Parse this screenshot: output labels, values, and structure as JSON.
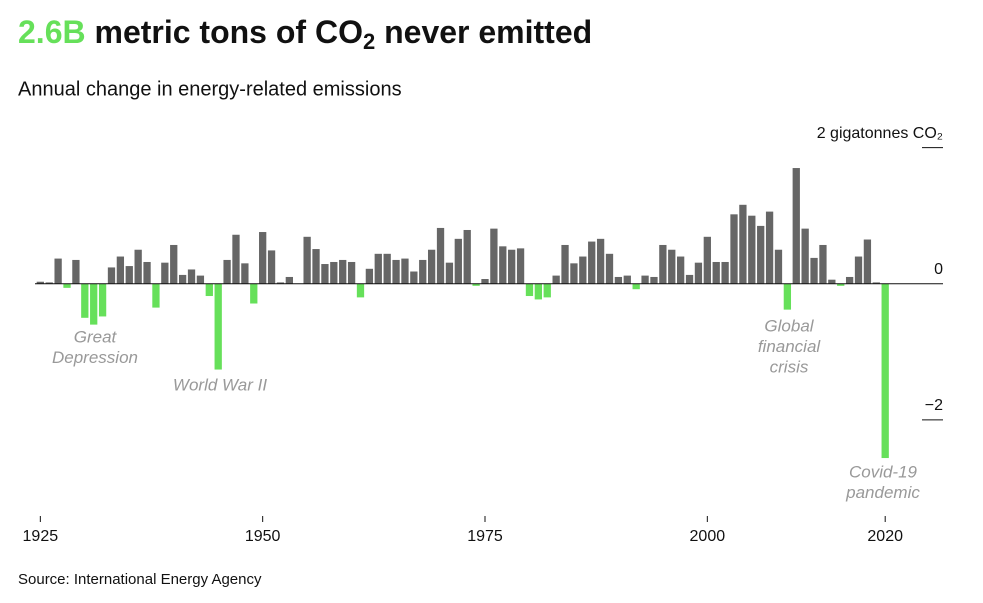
{
  "chart_data": {
    "type": "bar",
    "title": {
      "highlight": "2.6B",
      "text": "metric tons of CO",
      "sub": "2",
      "rest": "never emitted"
    },
    "subtitle": "Annual change in energy-related emissions",
    "source": "Source: International Energy Agency",
    "x": [
      1925,
      1926,
      1927,
      1928,
      1929,
      1930,
      1931,
      1932,
      1933,
      1934,
      1935,
      1936,
      1937,
      1938,
      1939,
      1940,
      1941,
      1942,
      1943,
      1944,
      1945,
      1946,
      1947,
      1948,
      1949,
      1950,
      1951,
      1952,
      1953,
      1954,
      1955,
      1956,
      1957,
      1958,
      1959,
      1960,
      1961,
      1962,
      1963,
      1964,
      1965,
      1966,
      1967,
      1968,
      1969,
      1970,
      1971,
      1972,
      1973,
      1974,
      1975,
      1976,
      1977,
      1978,
      1979,
      1980,
      1981,
      1982,
      1983,
      1984,
      1985,
      1986,
      1987,
      1988,
      1989,
      1990,
      1991,
      1992,
      1993,
      1994,
      1995,
      1996,
      1997,
      1998,
      1999,
      2000,
      2001,
      2002,
      2003,
      2004,
      2005,
      2006,
      2007,
      2008,
      2009,
      2010,
      2011,
      2012,
      2013,
      2014,
      2015,
      2016,
      2017,
      2018,
      2019,
      2020
    ],
    "values": [
      0.03,
      0.02,
      0.37,
      -0.06,
      0.35,
      -0.5,
      -0.6,
      -0.48,
      0.24,
      0.4,
      0.26,
      0.5,
      0.32,
      -0.35,
      0.31,
      0.57,
      0.13,
      0.21,
      0.12,
      -0.18,
      -1.26,
      0.35,
      0.72,
      0.3,
      -0.29,
      0.76,
      0.49,
      0.02,
      0.1,
      0.0,
      0.69,
      0.51,
      0.29,
      0.32,
      0.35,
      0.32,
      -0.2,
      0.22,
      0.44,
      0.44,
      0.35,
      0.37,
      0.18,
      0.35,
      0.5,
      0.82,
      0.31,
      0.66,
      0.79,
      -0.03,
      0.07,
      0.81,
      0.55,
      0.5,
      0.52,
      -0.18,
      -0.23,
      -0.2,
      0.12,
      0.57,
      0.3,
      0.4,
      0.62,
      0.66,
      0.44,
      0.1,
      0.12,
      -0.08,
      0.12,
      0.1,
      0.57,
      0.5,
      0.4,
      0.13,
      0.31,
      0.69,
      0.32,
      0.32,
      1.02,
      1.16,
      1.0,
      0.85,
      1.06,
      0.5,
      -0.38,
      1.7,
      0.81,
      0.38,
      0.57,
      0.06,
      -0.03,
      0.1,
      0.4,
      0.65,
      0.02,
      -2.56
    ],
    "color": "#666666",
    "negative_color": "#66e05a",
    "xlim": [
      1924.4,
      2026.5
    ],
    "xticks": [
      1925,
      1950,
      1975,
      2000,
      2020
    ],
    "ylim": [
      -3,
      2.2
    ],
    "yticks": [
      {
        "value": 2,
        "label": "2 gigatonnes CO₂"
      },
      0,
      {
        "value": -2,
        "label": "−2"
      }
    ],
    "annotations": [
      {
        "lines": [
          "Great",
          "Depression"
        ]
      },
      {
        "lines": [
          "World War II"
        ]
      },
      {
        "lines": [
          "Global",
          "financial",
          "crisis"
        ]
      },
      {
        "lines": [
          "Covid-19",
          "pandemic"
        ]
      }
    ]
  }
}
